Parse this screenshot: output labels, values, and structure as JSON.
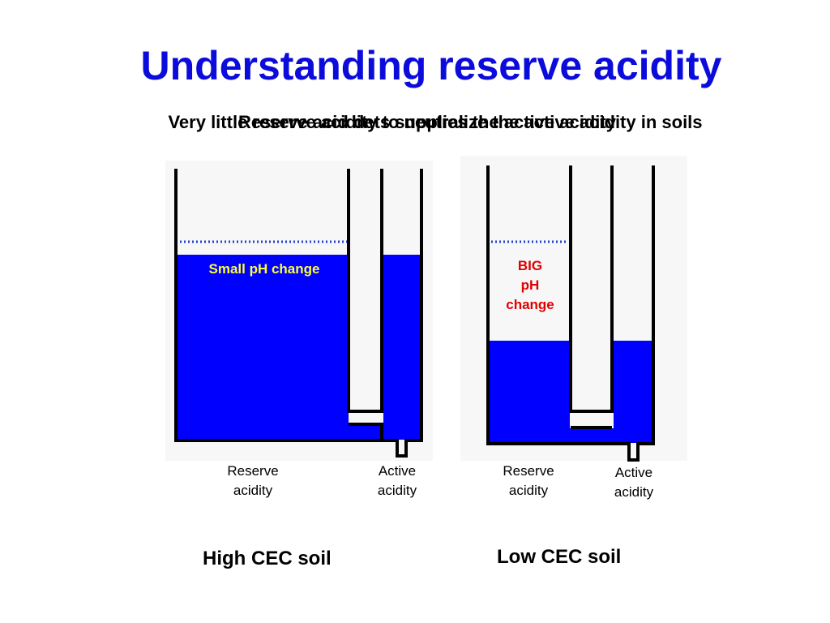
{
  "title": "Understanding reserve acidity",
  "subtitle_layer_1": "Very little reserve acidity to neutralize the active acidity in soils",
  "subtitle_layer_2": "Reserve acid dets supplies the active acidity",
  "colors": {
    "title": "#0b0bdc",
    "water": "#0000ff",
    "wall": "#000000",
    "dotted_line": "#1f3fdc",
    "small_change_text": "#ffff33",
    "big_change_text": "#e00000"
  },
  "high_cec": {
    "caption": "High CEC soil",
    "change_label": "Small pH change",
    "reserve_label": "Reserve\nacidity",
    "active_label": "Active\nacidity"
  },
  "low_cec": {
    "caption": "Low CEC soil",
    "change_label": "BIG\npH\nchange",
    "reserve_label": "Reserve\nacidity",
    "active_label": "Active\nacidity"
  }
}
